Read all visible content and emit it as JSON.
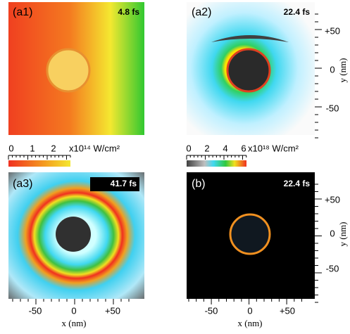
{
  "panels": [
    {
      "label": "(a1)",
      "time": "4.8 fs"
    },
    {
      "label": "(a2)",
      "time": "22.4 fs"
    },
    {
      "label": "(a3)",
      "time": "41.7 fs"
    },
    {
      "label": "(b)",
      "time": "22.4 fs"
    }
  ],
  "colorbars": [
    {
      "ticks": [
        "0",
        "1",
        "2"
      ],
      "unit": "x10¹⁴ W/cm²"
    },
    {
      "ticks": [
        "0",
        "2",
        "4",
        "6"
      ],
      "unit": "x10¹⁸ W/cm²"
    }
  ],
  "y_axis": {
    "label": "y (nm)",
    "ticks": [
      "+50",
      "0",
      "-50"
    ]
  },
  "x_axis": {
    "label": "x (nm)",
    "ticks": [
      "-50",
      "0",
      "+50"
    ]
  }
}
